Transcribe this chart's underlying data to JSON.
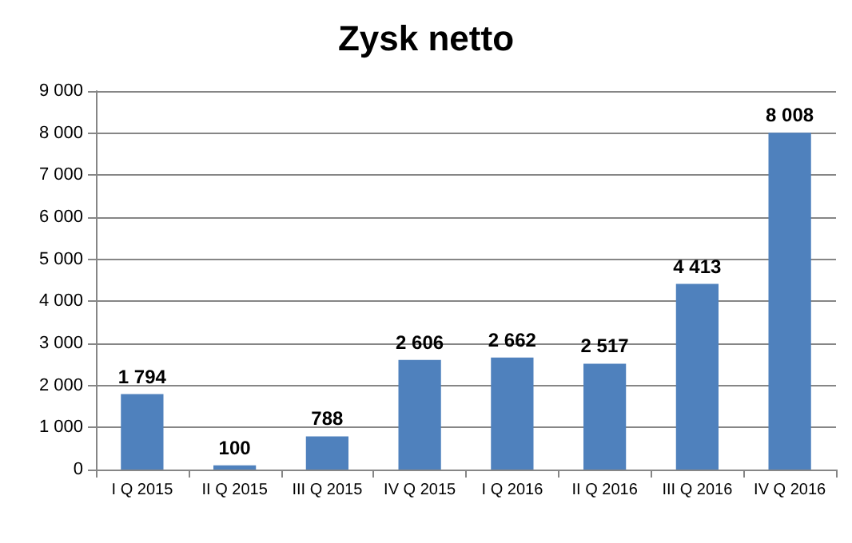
{
  "chart_data": {
    "type": "bar",
    "title": "Zysk netto",
    "categories": [
      "I Q 2015",
      "II Q 2015",
      "III Q 2015",
      "IV Q 2015",
      "I Q 2016",
      "II Q 2016",
      "III Q 2016",
      "IV Q 2016"
    ],
    "values": [
      1794,
      100,
      788,
      2606,
      2662,
      2517,
      4413,
      8008
    ],
    "value_labels": [
      "1 794",
      "100",
      "788",
      "2 606",
      "2 662",
      "2 517",
      "4 413",
      "8 008"
    ],
    "color": "#4f81bd",
    "ylim": [
      0,
      9000
    ],
    "yticks": [
      {
        "value": 0,
        "label": "0"
      },
      {
        "value": 1000,
        "label": "1 000"
      },
      {
        "value": 2000,
        "label": "2 000"
      },
      {
        "value": 3000,
        "label": "3 000"
      },
      {
        "value": 4000,
        "label": "4 000"
      },
      {
        "value": 5000,
        "label": "5 000"
      },
      {
        "value": 6000,
        "label": "6 000"
      },
      {
        "value": 7000,
        "label": "7 000"
      },
      {
        "value": 8000,
        "label": "8 000"
      },
      {
        "value": 9000,
        "label": "9 000"
      }
    ],
    "grid": "y"
  }
}
